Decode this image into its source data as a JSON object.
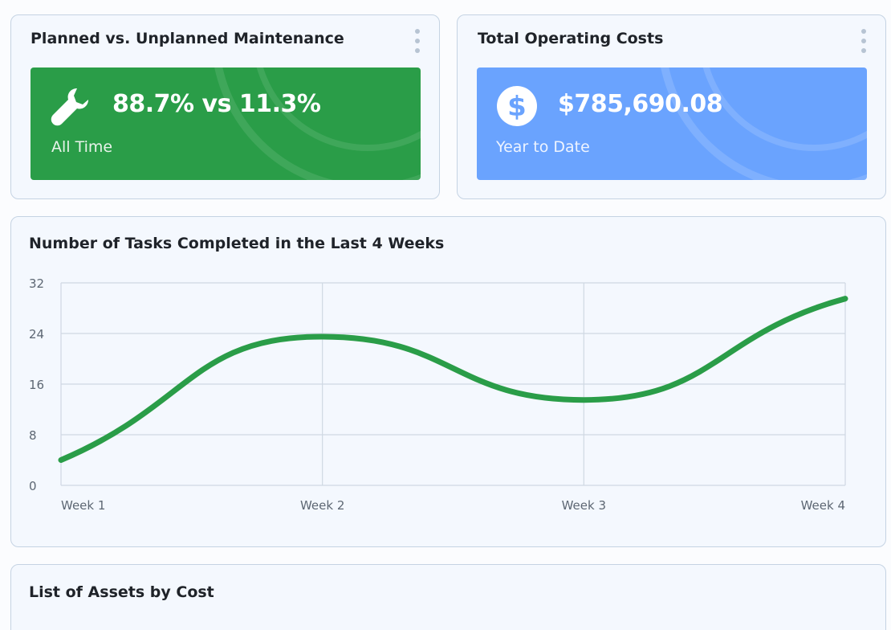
{
  "cards": {
    "maintenance": {
      "title": "Planned vs. Unplanned Maintenance",
      "value": "88.7% vs 11.3%",
      "subtitle": "All Time",
      "icon": "wrench-icon",
      "color": "#2a9d48"
    },
    "costs": {
      "title": "Total Operating Costs",
      "value": "$785,690.08",
      "subtitle": "Year to Date",
      "icon": "dollar-icon",
      "color": "#6aa3fe"
    }
  },
  "tasks_chart": {
    "title": "Number of Tasks Completed in the Last 4 Weeks"
  },
  "assets_list": {
    "title": "List of Assets by Cost"
  },
  "chart_data": {
    "type": "line",
    "categories": [
      "Week 1",
      "Week 2",
      "Week 3",
      "Week 4"
    ],
    "series": [
      {
        "values": [
          4,
          23.5,
          13.5,
          29.5
        ],
        "color": "#2a9d48"
      }
    ],
    "yticks": [
      0,
      8,
      16,
      24,
      32
    ],
    "ylim": [
      0,
      32
    ],
    "grid": true,
    "smooth": true
  }
}
